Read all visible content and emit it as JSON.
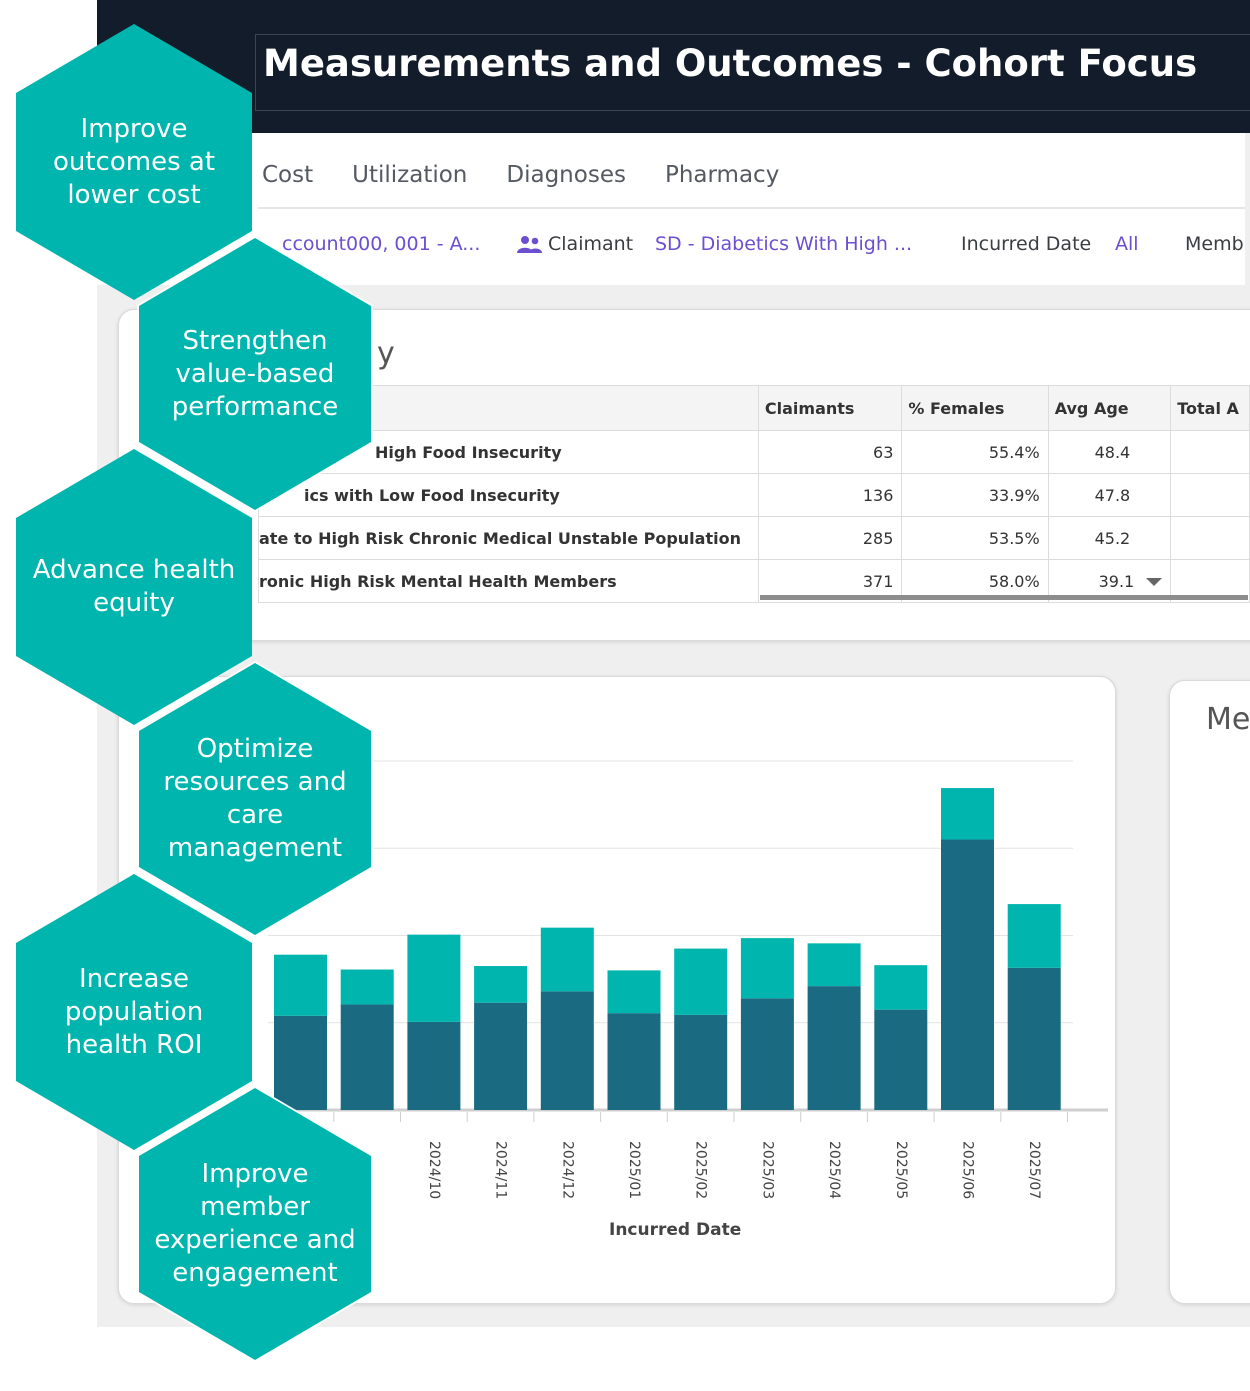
{
  "header": {
    "title": "Measurements and Outcomes - Cohort Focus"
  },
  "tabs": [
    "Cost",
    "Utilization",
    "Diagnoses",
    "Pharmacy"
  ],
  "filters": {
    "account_value": "ccount000, 001 - A...",
    "claimant_label": "Claimant",
    "claimant_value": "SD - Diabetics With High ...",
    "incurred_label": "Incurred Date",
    "incurred_value": "All",
    "member_label": "Memb"
  },
  "summary_card": {
    "title_fragment": "y",
    "columns": [
      "Claimants",
      "% Females",
      "Avg Age",
      "Total A"
    ],
    "rows": [
      {
        "name": "High Food Insecurity",
        "claimants": "63",
        "females": "55.4%",
        "avg_age": "48.4"
      },
      {
        "name": "ics with Low Food Insecurity",
        "claimants": "136",
        "females": "33.9%",
        "avg_age": "47.8"
      },
      {
        "name": "ate to High Risk Chronic Medical Unstable Population",
        "claimants": "285",
        "females": "53.5%",
        "avg_age": "45.2"
      },
      {
        "name": "ronic High Risk Mental Health Members",
        "claimants": "371",
        "females": "58.0%",
        "avg_age": "39.1"
      }
    ]
  },
  "right_card": {
    "title_fragment": "Me"
  },
  "hexagons": [
    {
      "label": "Improve outcomes at lower cost"
    },
    {
      "label": "Strengthen value-based performance"
    },
    {
      "label": "Advance health equity"
    },
    {
      "label": "Optimize resources and care management"
    },
    {
      "label": "Increase population health ROI"
    },
    {
      "label": "Improve member experience and engagement"
    }
  ],
  "colors": {
    "teal": "#00b5ad",
    "dark_teal": "#1a6b82",
    "header_bg": "#131c2b",
    "link": "#6c4fd0"
  },
  "chart_data": {
    "type": "bar",
    "stacked": true,
    "xlabel": "Incurred Date",
    "categories": [
      "",
      "",
      "2024/10",
      "2024/11",
      "2024/12",
      "2025/01",
      "2025/02",
      "2025/03",
      "2025/04",
      "2025/05",
      "2025/06",
      "2025/07"
    ],
    "series": [
      {
        "values": [
          108,
          121,
          101,
          123,
          136,
          111,
          109,
          128,
          142,
          115,
          310,
          163
        ]
      },
      {
        "values": [
          70,
          40,
          100,
          42,
          73,
          49,
          76,
          69,
          49,
          51,
          59,
          73
        ]
      }
    ],
    "grid": true
  }
}
